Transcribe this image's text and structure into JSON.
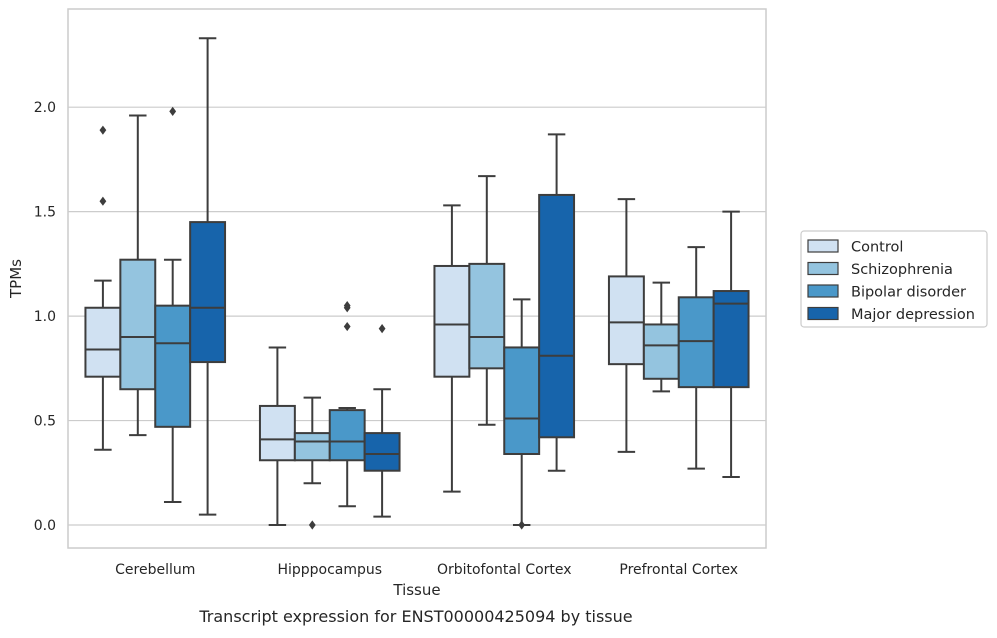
{
  "caption": "Transcript expression for ENST00000425094 by tissue",
  "chart_data": {
    "type": "box",
    "xlabel": "Tissue",
    "ylabel": "TPMs",
    "ylim": [
      -0.11,
      2.47
    ],
    "yticks": [
      "0.0",
      "0.5",
      "1.0",
      "1.5",
      "2.0"
    ],
    "ytick_values": [
      0.0,
      0.5,
      1.0,
      1.5,
      2.0
    ],
    "grid": true,
    "legend_position": "right",
    "categories": [
      "Cerebellum",
      "Hipppocampus",
      "Orbitofontal Cortex",
      "Prefrontal Cortex"
    ],
    "series": [
      {
        "name": "Control",
        "color": "#d0e1f2",
        "boxes": [
          {
            "whislo": 0.36,
            "q1": 0.71,
            "med": 0.84,
            "q3": 1.04,
            "whishi": 1.17,
            "fliers": [
              1.55,
              1.89
            ]
          },
          {
            "whislo": 0.0,
            "q1": 0.31,
            "med": 0.41,
            "q3": 0.57,
            "whishi": 0.85,
            "fliers": []
          },
          {
            "whislo": 0.16,
            "q1": 0.71,
            "med": 0.96,
            "q3": 1.24,
            "whishi": 1.53,
            "fliers": []
          },
          {
            "whislo": 0.35,
            "q1": 0.77,
            "med": 0.97,
            "q3": 1.19,
            "whishi": 1.56,
            "fliers": []
          }
        ]
      },
      {
        "name": "Schizophrenia",
        "color": "#94c4df",
        "boxes": [
          {
            "whislo": 0.43,
            "q1": 0.65,
            "med": 0.9,
            "q3": 1.27,
            "whishi": 1.96,
            "fliers": []
          },
          {
            "whislo": 0.2,
            "q1": 0.31,
            "med": 0.4,
            "q3": 0.44,
            "whishi": 0.61,
            "fliers": [
              0.0
            ]
          },
          {
            "whislo": 0.48,
            "q1": 0.75,
            "med": 0.9,
            "q3": 1.25,
            "whishi": 1.67,
            "fliers": []
          },
          {
            "whislo": 0.64,
            "q1": 0.7,
            "med": 0.86,
            "q3": 0.96,
            "whishi": 1.16,
            "fliers": []
          }
        ]
      },
      {
        "name": "Bipolar disorder",
        "color": "#4a98c9",
        "boxes": [
          {
            "whislo": 0.11,
            "q1": 0.47,
            "med": 0.87,
            "q3": 1.05,
            "whishi": 1.27,
            "fliers": [
              1.98
            ]
          },
          {
            "whislo": 0.09,
            "q1": 0.31,
            "med": 0.4,
            "q3": 0.55,
            "whishi": 0.56,
            "fliers": [
              0.95,
              1.04,
              1.05
            ]
          },
          {
            "whislo": 0.0,
            "q1": 0.34,
            "med": 0.51,
            "q3": 0.85,
            "whishi": 1.08,
            "fliers": [
              0.0
            ]
          },
          {
            "whislo": 0.27,
            "q1": 0.66,
            "med": 0.88,
            "q3": 1.09,
            "whishi": 1.33,
            "fliers": []
          }
        ]
      },
      {
        "name": "Major depression",
        "color": "#1764ab",
        "boxes": [
          {
            "whislo": 0.05,
            "q1": 0.78,
            "med": 1.04,
            "q3": 1.45,
            "whishi": 2.33,
            "fliers": []
          },
          {
            "whislo": 0.04,
            "q1": 0.26,
            "med": 0.34,
            "q3": 0.44,
            "whishi": 0.65,
            "fliers": [
              0.94
            ]
          },
          {
            "whislo": 0.26,
            "q1": 0.42,
            "med": 0.81,
            "q3": 1.58,
            "whishi": 1.87,
            "fliers": []
          },
          {
            "whislo": 0.23,
            "q1": 0.66,
            "med": 1.06,
            "q3": 1.12,
            "whishi": 1.5,
            "fliers": []
          }
        ]
      }
    ]
  }
}
